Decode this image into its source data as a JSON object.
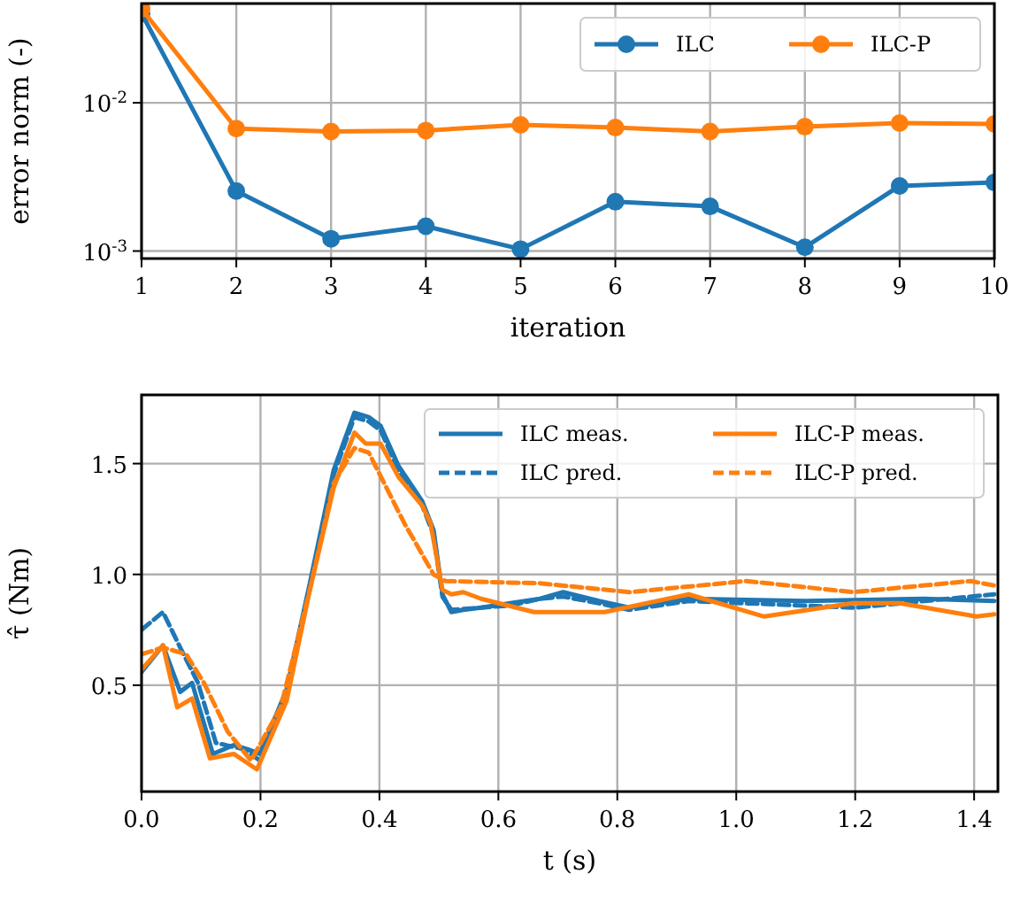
{
  "chart_data": [
    {
      "type": "line",
      "xlabel": "iteration",
      "ylabel": "error norm (-)",
      "log": "y",
      "grid": true,
      "marker": "circle",
      "legend": "top right",
      "x": [
        1,
        2,
        3,
        4,
        5,
        6,
        7,
        8,
        9,
        10
      ],
      "xlim": [
        1,
        10
      ],
      "xticks": [
        1,
        2,
        3,
        4,
        5,
        6,
        7,
        8,
        9,
        10
      ],
      "ylim": [
        0.00089,
        0.0467
      ],
      "yticks": [
        {
          "value": 0.001,
          "label": "10$^{-3}$"
        },
        {
          "value": 0.01,
          "label": "10$^{-2}$"
        }
      ],
      "series": [
        {
          "name": "ILC",
          "color": "#1f77b4",
          "values": [
            0.04,
            0.00254,
            0.00121,
            0.00147,
            0.00103,
            0.00215,
            0.002,
            0.00106,
            0.00275,
            0.0029
          ]
        },
        {
          "name": "ILC-P",
          "color": "#ff7f0e",
          "values": [
            0.043,
            0.0067,
            0.0064,
            0.0065,
            0.0071,
            0.0068,
            0.0064,
            0.0069,
            0.0073,
            0.0072
          ]
        }
      ]
    },
    {
      "type": "line",
      "xlabel": "t (s)",
      "ylabel": "τ̂ (Nm)",
      "grid": true,
      "marker": "none",
      "legend": "top right",
      "xlim": [
        0,
        1.44
      ],
      "xticks": [
        {
          "value": 0,
          "label": "0.0"
        },
        0.2,
        0.4,
        0.6,
        0.8,
        {
          "value": 1,
          "label": "1.0"
        },
        1.2,
        1.4
      ],
      "ylim": [
        0.02,
        1.81
      ],
      "yticks": [
        0.5,
        {
          "value": 1,
          "label": "1.0"
        },
        1.5
      ],
      "series": [
        {
          "name": "ILC meas.",
          "color": "#1f77b4",
          "line_style": "solid",
          "x": [
            0,
            0.036,
            0.065,
            0.085,
            0.12,
            0.155,
            0.179,
            0.199,
            0.244,
            0.283,
            0.323,
            0.358,
            0.382,
            0.402,
            0.432,
            0.472,
            0.491,
            0.506,
            0.521,
            0.541,
            0.571,
            0.62,
            0.67,
            0.709,
            0.769,
            0.82,
            0.868,
            0.92,
            1.117,
            1.315,
            1.434
          ],
          "values": [
            0.56,
            0.68,
            0.47,
            0.51,
            0.19,
            0.23,
            0.21,
            0.19,
            0.48,
            0.96,
            1.47,
            1.73,
            1.71,
            1.67,
            1.49,
            1.33,
            1.2,
            0.91,
            0.83,
            0.84,
            0.85,
            0.87,
            0.89,
            0.92,
            0.88,
            0.85,
            0.87,
            0.89,
            0.88,
            0.89,
            0.88
          ]
        },
        {
          "name": "ILC pred.",
          "color": "#1f77b4",
          "line_style": "dashed",
          "x": [
            0,
            0.036,
            0.065,
            0.095,
            0.125,
            0.174,
            0.199,
            0.244,
            0.283,
            0.323,
            0.358,
            0.382,
            0.402,
            0.432,
            0.472,
            0.491,
            0.506,
            0.521,
            0.571,
            0.62,
            0.67,
            0.709,
            0.769,
            0.82,
            0.92,
            1.2,
            1.434
          ],
          "values": [
            0.75,
            0.83,
            0.67,
            0.51,
            0.24,
            0.21,
            0.16,
            0.47,
            0.95,
            1.45,
            1.71,
            1.69,
            1.65,
            1.47,
            1.31,
            1.18,
            0.9,
            0.84,
            0.85,
            0.86,
            0.89,
            0.9,
            0.87,
            0.84,
            0.88,
            0.85,
            0.91
          ]
        },
        {
          "name": "ILC-P meas.",
          "color": "#ff7f0e",
          "line_style": "solid",
          "x": [
            0,
            0.036,
            0.06,
            0.085,
            0.115,
            0.155,
            0.194,
            0.244,
            0.283,
            0.323,
            0.358,
            0.377,
            0.402,
            0.432,
            0.472,
            0.486,
            0.506,
            0.521,
            0.541,
            0.571,
            0.66,
            0.779,
            0.92,
            1.047,
            1.196,
            1.275,
            1.404,
            1.434
          ],
          "values": [
            0.57,
            0.68,
            0.4,
            0.44,
            0.17,
            0.19,
            0.12,
            0.43,
            0.93,
            1.39,
            1.64,
            1.59,
            1.59,
            1.44,
            1.31,
            1.23,
            0.93,
            0.91,
            0.92,
            0.89,
            0.83,
            0.83,
            0.91,
            0.81,
            0.87,
            0.87,
            0.81,
            0.82
          ]
        },
        {
          "name": "ILC-P pred.",
          "color": "#ff7f0e",
          "line_style": "dashed",
          "x": [
            0,
            0.036,
            0.075,
            0.105,
            0.145,
            0.184,
            0.234,
            0.283,
            0.323,
            0.358,
            0.382,
            0.412,
            0.442,
            0.472,
            0.491,
            0.511,
            0.67,
            0.82,
            1.017,
            1.196,
            1.394,
            1.434
          ],
          "values": [
            0.64,
            0.67,
            0.64,
            0.51,
            0.29,
            0.16,
            0.4,
            0.93,
            1.41,
            1.57,
            1.55,
            1.39,
            1.23,
            1.09,
            1.0,
            0.97,
            0.96,
            0.92,
            0.97,
            0.92,
            0.97,
            0.95
          ]
        }
      ]
    }
  ]
}
